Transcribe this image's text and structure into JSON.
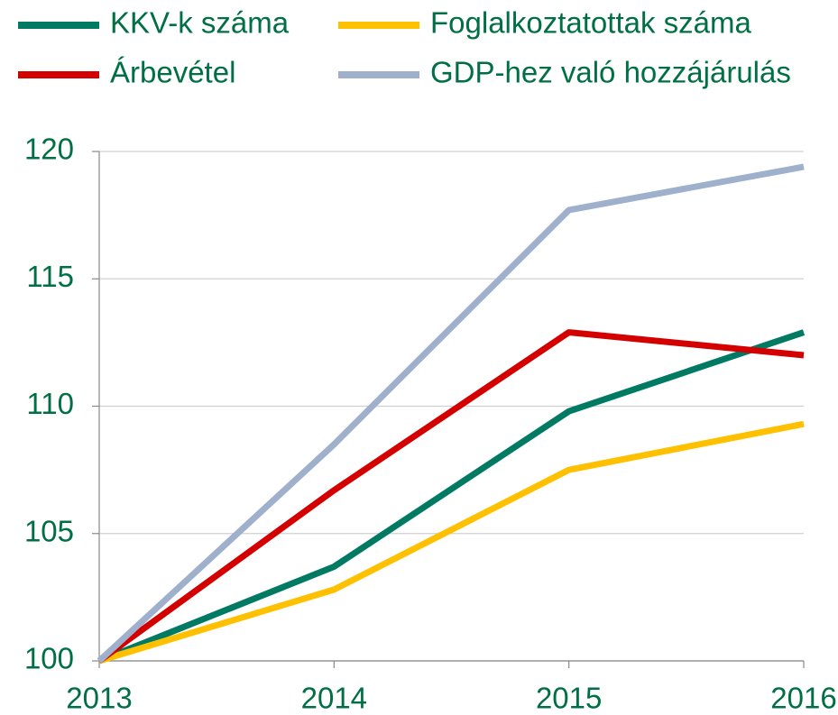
{
  "chart_data": {
    "type": "line",
    "categories": [
      "2013",
      "2014",
      "2015",
      "2016"
    ],
    "series": [
      {
        "name": "KKV-k száma",
        "color": "#007a63",
        "values": [
          100,
          103.7,
          109.8,
          112.9
        ]
      },
      {
        "name": "Foglalkoztatottak száma",
        "color": "#ffc000",
        "values": [
          100,
          102.8,
          107.5,
          109.3
        ]
      },
      {
        "name": "Árbevétel",
        "color": "#d40000",
        "values": [
          100,
          106.7,
          112.9,
          112.0
        ]
      },
      {
        "name": "GDP-hez való hozzájárulás",
        "color": "#9fb0cd",
        "values": [
          100,
          108.5,
          117.7,
          119.4
        ]
      }
    ],
    "ylim": [
      100,
      120
    ],
    "yticks": [
      100,
      105,
      110,
      115,
      120
    ],
    "grid": true,
    "legend": "top"
  }
}
